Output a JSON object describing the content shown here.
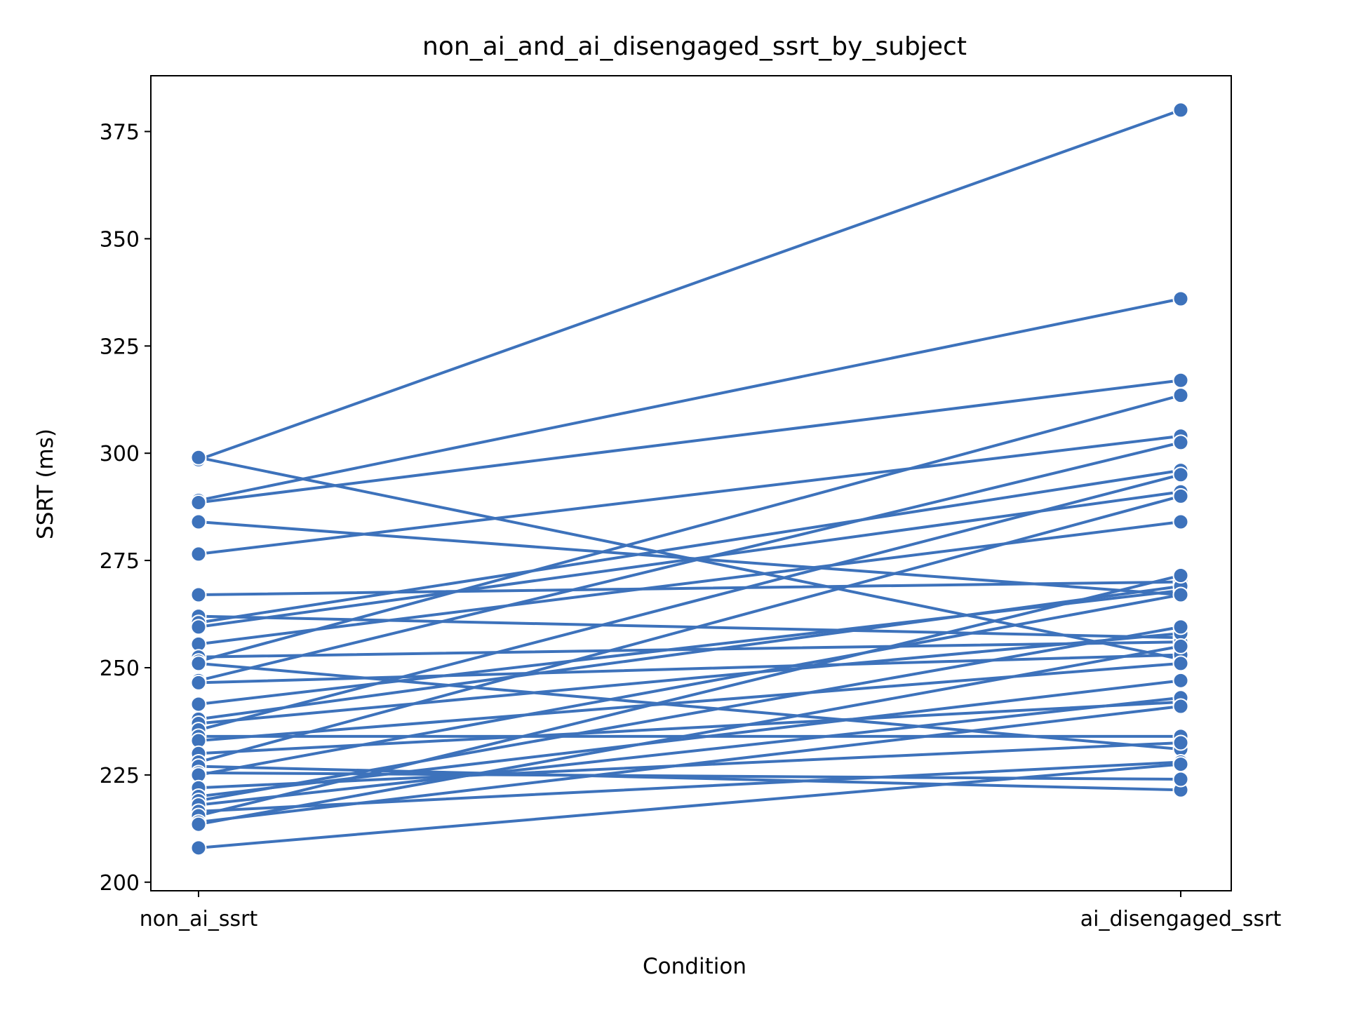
{
  "chart_data": {
    "type": "line",
    "title": "non_ai_and_ai_disengaged_ssrt_by_subject",
    "xlabel": "Condition",
    "ylabel": "SSRT (ms)",
    "categories": [
      "non_ai_ssrt",
      "ai_disengaged_ssrt"
    ],
    "ylim": [
      198,
      388
    ],
    "yticks": [
      200,
      225,
      250,
      275,
      300,
      325,
      350,
      375
    ],
    "grid": false,
    "legend": "none",
    "series_color": "#3d72bb",
    "marker_edge_color": "#ffffff",
    "series": [
      {
        "values": [
          298.5,
          380.0
        ]
      },
      {
        "values": [
          289.0,
          336.0
        ]
      },
      {
        "values": [
          288.5,
          317.0
        ]
      },
      {
        "values": [
          299.0,
          252.0
        ]
      },
      {
        "values": [
          284.0,
          267.0
        ]
      },
      {
        "values": [
          276.5,
          304.0
        ]
      },
      {
        "values": [
          267.0,
          270.0
        ]
      },
      {
        "values": [
          262.0,
          257.0
        ]
      },
      {
        "values": [
          260.5,
          296.0
        ]
      },
      {
        "values": [
          259.5,
          291.0
        ]
      },
      {
        "values": [
          255.5,
          284.0
        ]
      },
      {
        "values": [
          252.5,
          256.0
        ]
      },
      {
        "values": [
          251.5,
          313.5
        ]
      },
      {
        "values": [
          251.0,
          231.0
        ]
      },
      {
        "values": [
          247.0,
          302.5
        ]
      },
      {
        "values": [
          246.5,
          253.0
        ]
      },
      {
        "values": [
          241.5,
          268.0
        ]
      },
      {
        "values": [
          238.0,
          269.0
        ]
      },
      {
        "values": [
          237.0,
          258.0
        ]
      },
      {
        "values": [
          235.5,
          295.0
        ]
      },
      {
        "values": [
          234.0,
          234.0
        ]
      },
      {
        "values": [
          233.0,
          251.0
        ]
      },
      {
        "values": [
          230.0,
          242.0
        ]
      },
      {
        "values": [
          228.0,
          290.0
        ]
      },
      {
        "values": [
          227.0,
          221.5
        ]
      },
      {
        "values": [
          225.5,
          224.0
        ]
      },
      {
        "values": [
          225.0,
          267.0
        ]
      },
      {
        "values": [
          222.0,
          232.5
        ]
      },
      {
        "values": [
          220.0,
          247.0
        ]
      },
      {
        "values": [
          219.0,
          259.5
        ]
      },
      {
        "values": [
          218.0,
          243.0
        ]
      },
      {
        "values": [
          216.5,
          228.0
        ]
      },
      {
        "values": [
          215.5,
          271.5
        ]
      },
      {
        "values": [
          214.0,
          241.0
        ]
      },
      {
        "values": [
          213.5,
          255.0
        ]
      },
      {
        "values": [
          208.0,
          227.5
        ]
      }
    ]
  }
}
